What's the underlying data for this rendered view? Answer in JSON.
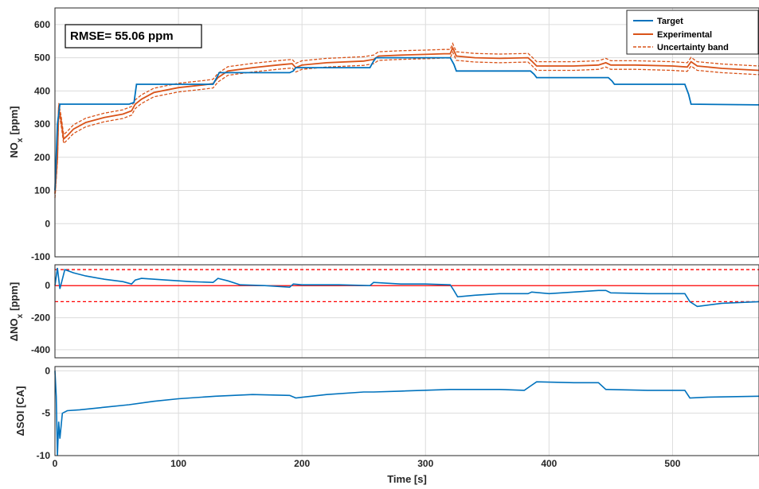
{
  "colors": {
    "target": "#0072BD",
    "experimental": "#D95319",
    "uncertainty": "#D95319",
    "limits": "#FF0000",
    "grid": "#DCDCDC",
    "axes": "#262626"
  },
  "chart_data": [
    {
      "type": "line",
      "panel": "top",
      "ylabel": "NO",
      "ylabel_sub": "x",
      "ylabel_unit": "[ppm]",
      "xlim": [
        0,
        570
      ],
      "ylim": [
        -100,
        650
      ],
      "xticks": [
        0,
        100,
        200,
        300,
        400,
        500
      ],
      "yticks": [
        -100,
        0,
        100,
        200,
        300,
        400,
        500,
        600
      ],
      "grid": true,
      "legend": "top-right",
      "annotation": "RMSE= 55.06 ppm",
      "series": [
        {
          "name": "Target",
          "x": [
            0,
            2,
            4,
            60,
            64,
            66,
            128,
            131,
            133,
            190,
            193,
            195,
            255,
            258,
            260,
            320,
            323,
            325,
            385,
            388,
            390,
            448,
            451,
            453,
            510,
            513,
            515,
            570
          ],
          "y": [
            100,
            300,
            360,
            360,
            365,
            420,
            420,
            440,
            455,
            455,
            460,
            470,
            470,
            490,
            500,
            500,
            480,
            460,
            460,
            450,
            440,
            440,
            430,
            420,
            420,
            390,
            360,
            358
          ]
        },
        {
          "name": "Experimental",
          "x": [
            0,
            2,
            3,
            5,
            7,
            10,
            15,
            25,
            40,
            55,
            62,
            65,
            70,
            80,
            100,
            120,
            128,
            132,
            140,
            160,
            180,
            192,
            195,
            200,
            220,
            250,
            258,
            262,
            280,
            300,
            315,
            320,
            322,
            325,
            340,
            360,
            383,
            386,
            390,
            420,
            440,
            446,
            450,
            470,
            500,
            512,
            515,
            520,
            540,
            570
          ],
          "y": [
            90,
            200,
            350,
            310,
            255,
            265,
            285,
            305,
            320,
            330,
            340,
            360,
            375,
            395,
            410,
            418,
            422,
            440,
            460,
            470,
            478,
            482,
            470,
            478,
            485,
            490,
            495,
            505,
            508,
            510,
            512,
            512,
            530,
            505,
            500,
            498,
            500,
            490,
            475,
            475,
            478,
            485,
            478,
            478,
            475,
            472,
            488,
            475,
            468,
            462
          ]
        },
        {
          "name": "Uncertainty band",
          "style": "dashed",
          "offset": 13
        }
      ]
    },
    {
      "type": "line",
      "panel": "middle",
      "ylabel": "ΔNO",
      "ylabel_sub": "x",
      "ylabel_unit": "[ppm]",
      "xlim": [
        0,
        570
      ],
      "ylim": [
        -450,
        130
      ],
      "yticks": [
        -400,
        -200,
        0
      ],
      "grid": true,
      "reference_lines": [
        100,
        0,
        -100
      ],
      "series": [
        {
          "name": "",
          "x": [
            0,
            2,
            4,
            8,
            15,
            25,
            40,
            55,
            62,
            65,
            70,
            90,
            110,
            128,
            132,
            140,
            150,
            170,
            190,
            193,
            200,
            230,
            255,
            258,
            280,
            300,
            320,
            323,
            326,
            340,
            360,
            383,
            386,
            400,
            420,
            440,
            446,
            450,
            480,
            510,
            514,
            520,
            540,
            570
          ],
          "y": [
            0,
            110,
            -20,
            100,
            80,
            60,
            40,
            25,
            10,
            35,
            45,
            35,
            25,
            20,
            45,
            30,
            5,
            0,
            -10,
            10,
            5,
            5,
            0,
            20,
            10,
            10,
            5,
            -30,
            -70,
            -60,
            -50,
            -50,
            -40,
            -50,
            -40,
            -30,
            -30,
            -45,
            -50,
            -50,
            -100,
            -130,
            -110,
            -100
          ]
        }
      ]
    },
    {
      "type": "line",
      "panel": "bottom",
      "xlabel": "Time [s]",
      "ylabel": "ΔSOI [CA]",
      "xlim": [
        0,
        570
      ],
      "ylim": [
        -10,
        0.5
      ],
      "xticks": [
        0,
        100,
        200,
        300,
        400,
        500
      ],
      "yticks": [
        -10,
        -5,
        0
      ],
      "grid": true,
      "series": [
        {
          "name": "",
          "x": [
            0,
            1,
            2,
            3,
            4,
            6,
            10,
            20,
            40,
            60,
            80,
            100,
            130,
            160,
            190,
            195,
            220,
            250,
            258,
            280,
            320,
            360,
            380,
            385,
            390,
            420,
            440,
            446,
            480,
            510,
            514,
            530,
            570
          ],
          "y": [
            0,
            -3,
            -10,
            -6,
            -8,
            -5,
            -4.7,
            -4.6,
            -4.3,
            -4.0,
            -3.6,
            -3.3,
            -3.0,
            -2.8,
            -2.9,
            -3.2,
            -2.8,
            -2.5,
            -2.5,
            -2.4,
            -2.2,
            -2.2,
            -2.3,
            -1.8,
            -1.3,
            -1.4,
            -1.4,
            -2.2,
            -2.3,
            -2.3,
            -3.2,
            -3.1,
            -3.0
          ]
        }
      ]
    }
  ]
}
